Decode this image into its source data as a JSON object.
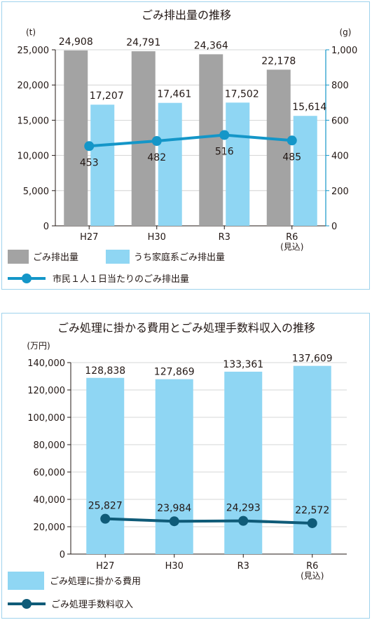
{
  "chart_data": [
    {
      "type": "bar",
      "title": "ごみ排出量の推移",
      "categories": [
        "H27",
        "H30",
        "R3",
        "R6"
      ],
      "category_sublabels": [
        "",
        "",
        "",
        "(見込)"
      ],
      "ylabel": "(t)",
      "y2label": "(g)",
      "ylim": [
        0,
        25000
      ],
      "y2lim": [
        0,
        1000
      ],
      "yticks": [
        "0",
        "5,000",
        "10,000",
        "15,000",
        "20,000",
        "25,000"
      ],
      "y2ticks": [
        "0",
        "200",
        "400",
        "600",
        "800",
        "1,000"
      ],
      "grid": true,
      "legend_position": "bottom",
      "series": [
        {
          "name": "ごみ排出量",
          "kind": "bar",
          "axis": "left",
          "color": "#a3a3a3",
          "values": [
            24908,
            24791,
            24364,
            22178
          ],
          "labels": [
            "24,908",
            "24,791",
            "24,364",
            "22,178"
          ]
        },
        {
          "name": "うち家庭系ごみ排出量",
          "kind": "bar",
          "axis": "left",
          "color": "#8fd6f3",
          "values": [
            17207,
            17461,
            17502,
            15614
          ],
          "labels": [
            "17,207",
            "17,461",
            "17,502",
            "15,614"
          ]
        },
        {
          "name": "市民１人１日当たりのごみ排出量",
          "kind": "line",
          "axis": "right",
          "color": "#1496c8",
          "values": [
            453,
            482,
            516,
            485
          ],
          "labels": [
            "453",
            "482",
            "516",
            "485"
          ]
        }
      ]
    },
    {
      "type": "bar",
      "title": "ごみ処理に掛かる費用とごみ処理手数料収入の推移",
      "categories": [
        "H27",
        "H30",
        "R3",
        "R6"
      ],
      "category_sublabels": [
        "",
        "",
        "",
        "(見込)"
      ],
      "ylabel": "(万円)",
      "ylim": [
        0,
        140000
      ],
      "yticks": [
        "0",
        "20,000",
        "40,000",
        "60,000",
        "80,000",
        "100,000",
        "120,000",
        "140,000"
      ],
      "grid": true,
      "legend_position": "bottom",
      "series": [
        {
          "name": "ごみ処理に掛かる費用",
          "kind": "bar",
          "axis": "left",
          "color": "#8fd6f3",
          "values": [
            128838,
            127869,
            133361,
            137609
          ],
          "labels": [
            "128,838",
            "127,869",
            "133,361",
            "137,609"
          ]
        },
        {
          "name": "ごみ処理手数料収入",
          "kind": "line",
          "axis": "left",
          "color": "#0f5b78",
          "values": [
            25827,
            23984,
            24293,
            22572
          ],
          "labels": [
            "25,827",
            "23,984",
            "24,293",
            "22,572"
          ]
        }
      ]
    }
  ]
}
